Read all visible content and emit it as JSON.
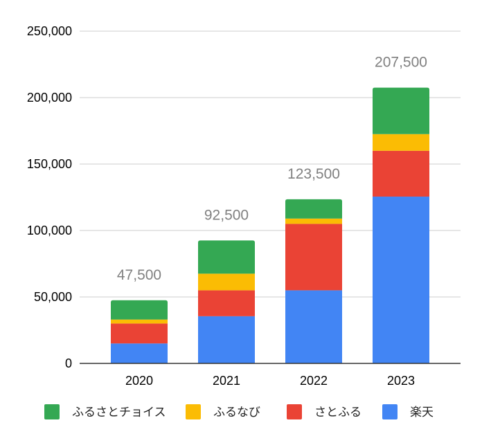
{
  "chart_data": {
    "type": "bar",
    "stacked": true,
    "title": "",
    "xlabel": "",
    "ylabel": "",
    "categories": [
      "2020",
      "2021",
      "2022",
      "2023"
    ],
    "ylim": [
      0,
      250000
    ],
    "y_ticks": [
      {
        "value": 0,
        "label": "0"
      },
      {
        "value": 50000,
        "label": "50,000"
      },
      {
        "value": 100000,
        "label": "100,000"
      },
      {
        "value": 150000,
        "label": "150,000"
      },
      {
        "value": 200000,
        "label": "200,000"
      },
      {
        "value": 250000,
        "label": "250,000"
      }
    ],
    "grid": true,
    "legend_position": "bottom",
    "series": [
      {
        "name": "楽天",
        "color": "#4285f4",
        "values": [
          15000,
          35500,
          55000,
          125500
        ]
      },
      {
        "name": "さとふる",
        "color": "#ea4335",
        "values": [
          15000,
          19500,
          50000,
          34500
        ]
      },
      {
        "name": "ふるなび",
        "color": "#fbbc04",
        "values": [
          3000,
          12500,
          4000,
          12500
        ]
      },
      {
        "name": "ふるさとチョイス",
        "color": "#34a853",
        "values": [
          14500,
          25000,
          14500,
          35000
        ]
      }
    ],
    "totals": [
      {
        "value": 47500,
        "label": "47,500"
      },
      {
        "value": 92500,
        "label": "92,500"
      },
      {
        "value": 123500,
        "label": "123,500"
      },
      {
        "value": 207500,
        "label": "207,500"
      }
    ],
    "legend_order": [
      "ふるさとチョイス",
      "ふるなび",
      "さとふる",
      "楽天"
    ]
  }
}
